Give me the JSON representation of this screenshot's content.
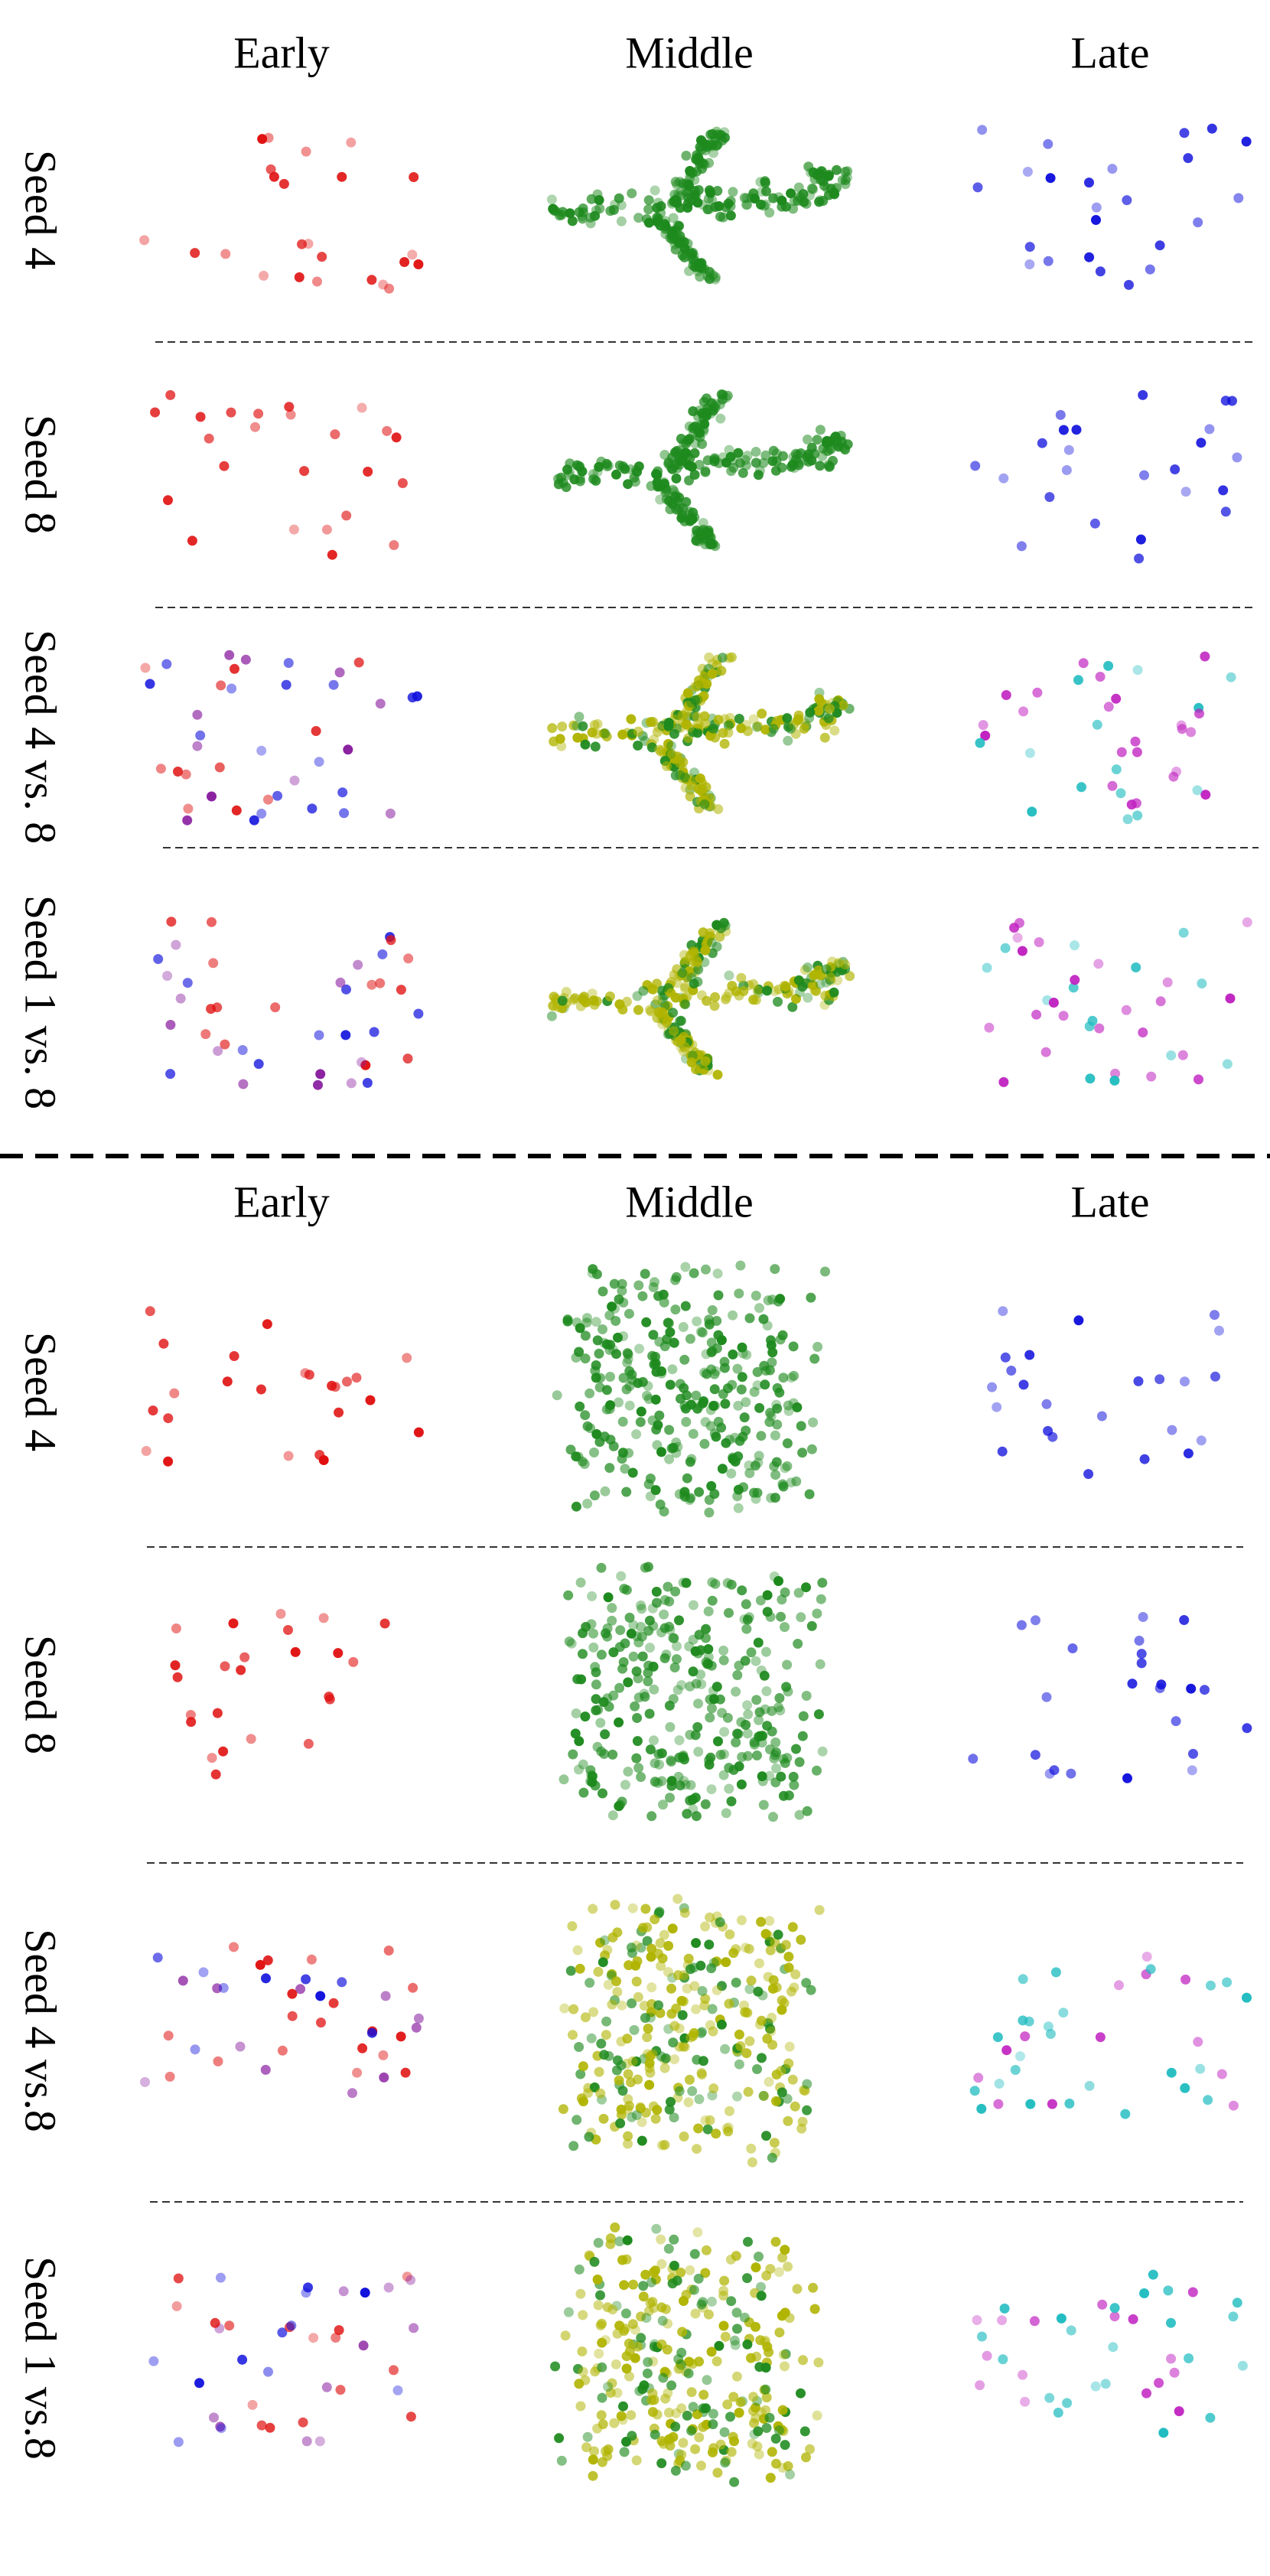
{
  "top": {
    "headers": [
      "Early",
      "Middle",
      "Late"
    ],
    "rows": [
      "Seed 4",
      "Seed 8",
      "Seed 4 vs. 8",
      "Seed 1 vs. 8"
    ]
  },
  "bottom": {
    "headers": [
      "Early",
      "Middle",
      "Late"
    ],
    "rows": [
      "Seed 4",
      "Seed 8",
      "Seed 4 vs.8",
      "Seed 1 vs.8"
    ]
  }
}
